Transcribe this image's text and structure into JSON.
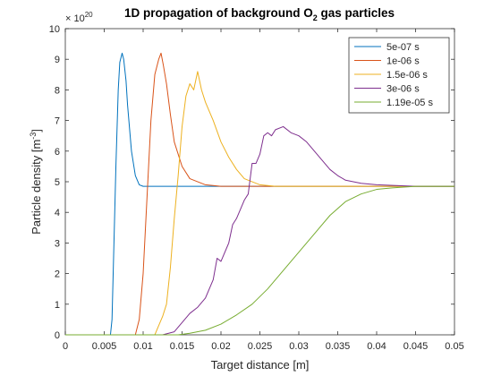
{
  "chart_data": {
    "type": "line",
    "title_main": "1D propagation of background O",
    "title_sub": "2",
    "title_rest": " gas particles",
    "xlabel": "Target distance [m]",
    "ylabel_main": "Particle density [m",
    "ylabel_sup": "-3",
    "ylabel_end": "]",
    "y_multiplier_base": "× 10",
    "y_multiplier_exp": "20",
    "xlim": [
      0,
      0.05
    ],
    "ylim": [
      0,
      10
    ],
    "x_ticks": [
      "0",
      "0.005",
      "0.01",
      "0.015",
      "0.02",
      "0.025",
      "0.03",
      "0.035",
      "0.04",
      "0.045",
      "0.05"
    ],
    "y_ticks": [
      "0",
      "1",
      "2",
      "3",
      "4",
      "5",
      "6",
      "7",
      "8",
      "9",
      "10"
    ],
    "grid": false,
    "legend_position": "top-right",
    "series": [
      {
        "name": "5e-07 s",
        "color": "#0072BD",
        "points": [
          [
            0,
            0
          ],
          [
            0.0058,
            0
          ],
          [
            0.006,
            0.5
          ],
          [
            0.0062,
            2.5
          ],
          [
            0.0065,
            5.5
          ],
          [
            0.0068,
            8
          ],
          [
            0.007,
            8.9
          ],
          [
            0.0073,
            9.2
          ],
          [
            0.0075,
            9
          ],
          [
            0.0078,
            8.3
          ],
          [
            0.008,
            7.5
          ],
          [
            0.0085,
            6
          ],
          [
            0.009,
            5.2
          ],
          [
            0.0095,
            4.9
          ],
          [
            0.01,
            4.85
          ],
          [
            0.05,
            4.85
          ]
        ]
      },
      {
        "name": "1e-06 s",
        "color": "#D95319",
        "points": [
          [
            0,
            0
          ],
          [
            0.009,
            0
          ],
          [
            0.0095,
            0.5
          ],
          [
            0.01,
            2
          ],
          [
            0.0105,
            4.5
          ],
          [
            0.011,
            7
          ],
          [
            0.0115,
            8.5
          ],
          [
            0.012,
            9
          ],
          [
            0.0123,
            9.2
          ],
          [
            0.0126,
            8.8
          ],
          [
            0.013,
            8.2
          ],
          [
            0.0135,
            7.2
          ],
          [
            0.014,
            6.3
          ],
          [
            0.015,
            5.5
          ],
          [
            0.016,
            5.1
          ],
          [
            0.018,
            4.9
          ],
          [
            0.02,
            4.85
          ],
          [
            0.05,
            4.85
          ]
        ]
      },
      {
        "name": "1.5e-06 s",
        "color": "#EDB120",
        "points": [
          [
            0,
            0
          ],
          [
            0.0115,
            0
          ],
          [
            0.012,
            0.3
          ],
          [
            0.0125,
            0.6
          ],
          [
            0.013,
            1.0
          ],
          [
            0.0135,
            2.2
          ],
          [
            0.014,
            3.8
          ],
          [
            0.0145,
            5.2
          ],
          [
            0.015,
            6.8
          ],
          [
            0.0155,
            7.8
          ],
          [
            0.016,
            8.2
          ],
          [
            0.0165,
            8.0
          ],
          [
            0.017,
            8.6
          ],
          [
            0.0175,
            8.0
          ],
          [
            0.018,
            7.6
          ],
          [
            0.019,
            7.0
          ],
          [
            0.02,
            6.3
          ],
          [
            0.021,
            5.8
          ],
          [
            0.022,
            5.4
          ],
          [
            0.023,
            5.1
          ],
          [
            0.025,
            4.9
          ],
          [
            0.027,
            4.85
          ],
          [
            0.05,
            4.85
          ]
        ]
      },
      {
        "name": "3e-06 s",
        "color": "#7E2F8E",
        "points": [
          [
            0,
            0
          ],
          [
            0.0125,
            0
          ],
          [
            0.014,
            0.1
          ],
          [
            0.015,
            0.4
          ],
          [
            0.016,
            0.7
          ],
          [
            0.017,
            0.9
          ],
          [
            0.018,
            1.2
          ],
          [
            0.019,
            1.8
          ],
          [
            0.0195,
            2.5
          ],
          [
            0.02,
            2.4
          ],
          [
            0.021,
            3.0
          ],
          [
            0.0215,
            3.6
          ],
          [
            0.022,
            3.8
          ],
          [
            0.023,
            4.4
          ],
          [
            0.0235,
            4.6
          ],
          [
            0.024,
            5.6
          ],
          [
            0.0245,
            5.6
          ],
          [
            0.025,
            5.9
          ],
          [
            0.0255,
            6.5
          ],
          [
            0.026,
            6.6
          ],
          [
            0.0265,
            6.5
          ],
          [
            0.027,
            6.7
          ],
          [
            0.028,
            6.8
          ],
          [
            0.029,
            6.6
          ],
          [
            0.03,
            6.5
          ],
          [
            0.031,
            6.3
          ],
          [
            0.032,
            6.0
          ],
          [
            0.033,
            5.7
          ],
          [
            0.034,
            5.4
          ],
          [
            0.035,
            5.2
          ],
          [
            0.036,
            5.05
          ],
          [
            0.038,
            4.95
          ],
          [
            0.04,
            4.9
          ],
          [
            0.045,
            4.85
          ],
          [
            0.05,
            4.85
          ]
        ]
      },
      {
        "name": "1.19e-05 s",
        "color": "#77AC30",
        "points": [
          [
            0,
            0
          ],
          [
            0.0145,
            0
          ],
          [
            0.016,
            0.05
          ],
          [
            0.018,
            0.15
          ],
          [
            0.02,
            0.35
          ],
          [
            0.022,
            0.65
          ],
          [
            0.024,
            1.0
          ],
          [
            0.026,
            1.5
          ],
          [
            0.028,
            2.1
          ],
          [
            0.03,
            2.7
          ],
          [
            0.032,
            3.3
          ],
          [
            0.034,
            3.9
          ],
          [
            0.036,
            4.35
          ],
          [
            0.038,
            4.6
          ],
          [
            0.04,
            4.75
          ],
          [
            0.042,
            4.8
          ],
          [
            0.045,
            4.85
          ],
          [
            0.05,
            4.85
          ]
        ]
      }
    ]
  }
}
